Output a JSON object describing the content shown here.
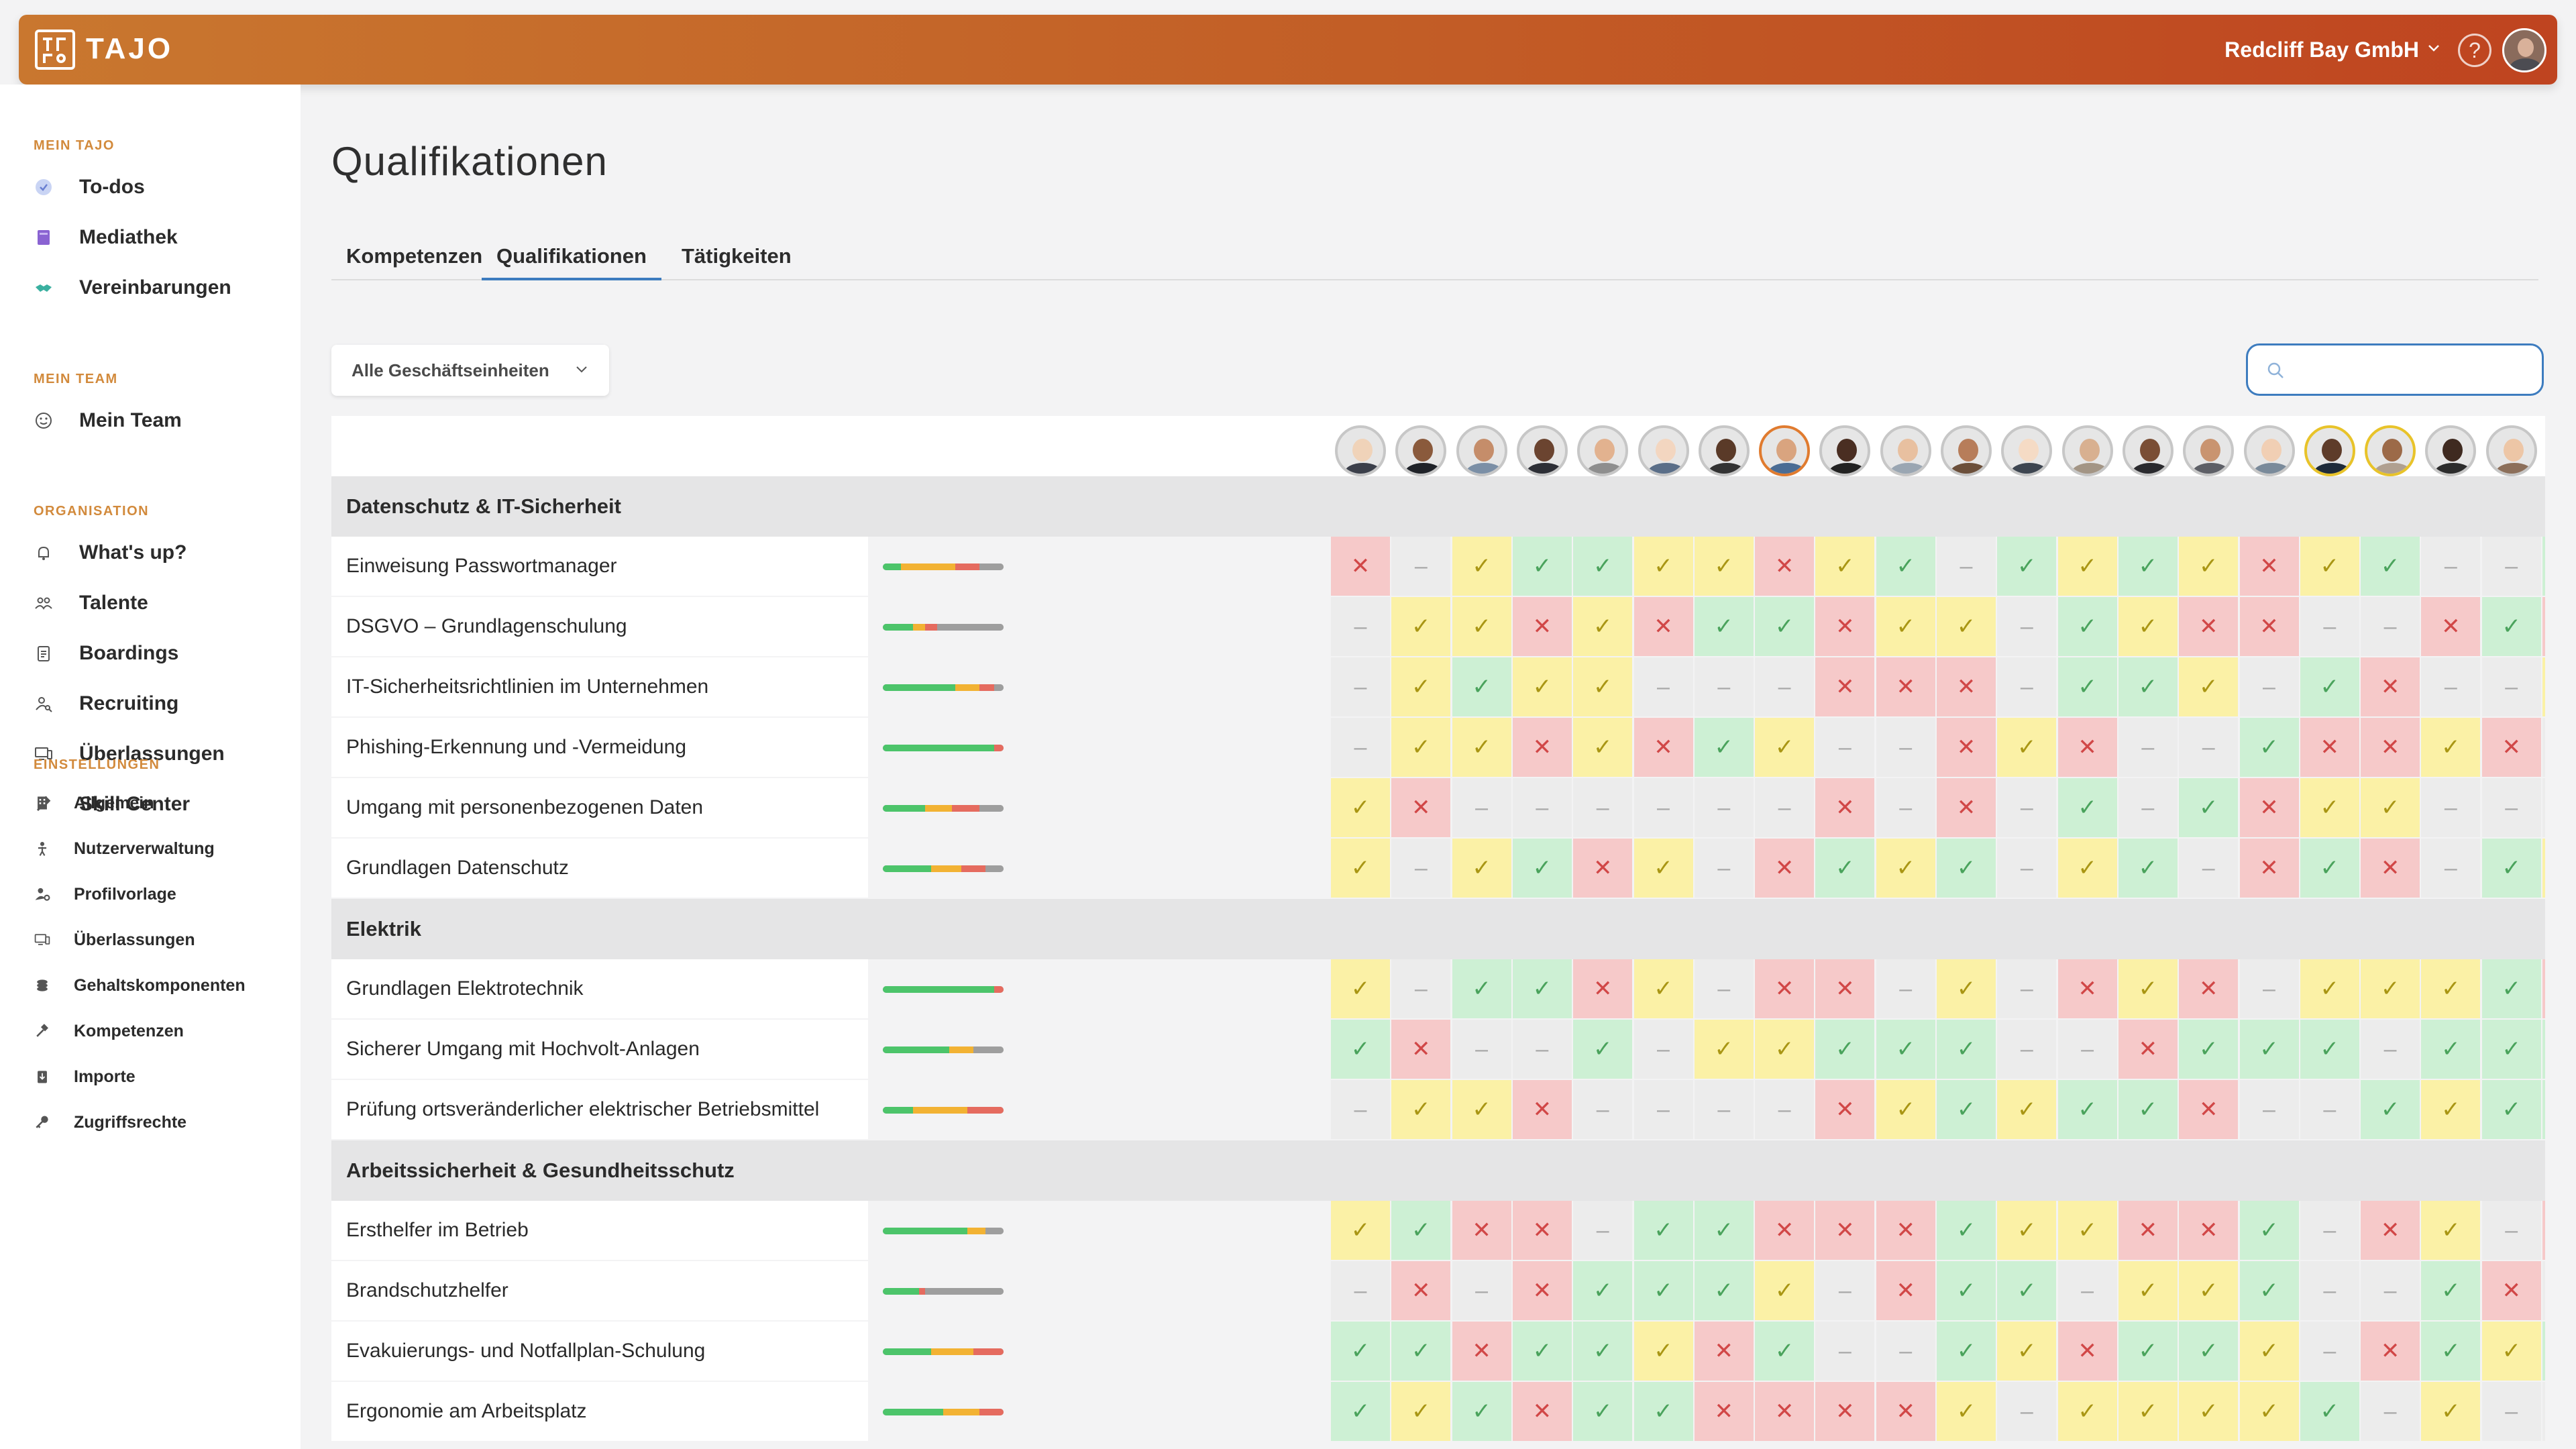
{
  "app": {
    "name": "TAJO",
    "logo_mark": "tajo-logo"
  },
  "header": {
    "company": "Redcliff Bay GmbH",
    "help_symbol": "?"
  },
  "sidebar": {
    "sections": [
      {
        "title": "MEIN TAJO",
        "items": [
          {
            "label": "To-dos",
            "icon": "check-circle-icon"
          },
          {
            "label": "Mediathek",
            "icon": "book-icon"
          },
          {
            "label": "Vereinbarungen",
            "icon": "handshake-icon"
          }
        ]
      },
      {
        "title": "MEIN TEAM",
        "items": [
          {
            "label": "Mein Team",
            "icon": "smiley-icon"
          }
        ]
      },
      {
        "title": "ORGANISATION",
        "items": [
          {
            "label": "What's up?",
            "icon": "bell-icon"
          },
          {
            "label": "Talente",
            "icon": "people-icon"
          },
          {
            "label": "Boardings",
            "icon": "clipboard-icon"
          },
          {
            "label": "Recruiting",
            "icon": "user-search-icon"
          },
          {
            "label": "Überlassungen",
            "icon": "devices-icon"
          },
          {
            "label": "Skill Center",
            "icon": "hammer-icon"
          }
        ]
      },
      {
        "title": "EINSTELLUNGEN",
        "items": [
          {
            "label": "Allgemein",
            "icon": "building-icon"
          },
          {
            "label": "Nutzerverwaltung",
            "icon": "person-icon"
          },
          {
            "label": "Profilvorlage",
            "icon": "user-gear-icon"
          },
          {
            "label": "Überlassungen",
            "icon": "devices-icon"
          },
          {
            "label": "Gehaltskomponenten",
            "icon": "coins-icon"
          },
          {
            "label": "Kompetenzen",
            "icon": "hammer-icon"
          },
          {
            "label": "Importe",
            "icon": "import-icon"
          },
          {
            "label": "Zugriffsrechte",
            "icon": "key-icon"
          }
        ]
      }
    ]
  },
  "page": {
    "title": "Qualifikationen",
    "tabs": [
      {
        "label": "Kompetenzen",
        "active": false
      },
      {
        "label": "Qualifikationen",
        "active": true
      },
      {
        "label": "Tätigkeiten",
        "active": false
      }
    ],
    "filter_label": "Alle Geschäftseinheiten",
    "search_placeholder": ""
  },
  "colors": {
    "accent": "#3d7cbf",
    "check": "#4aa35c",
    "warn": "#a99614",
    "cross": "#d14747",
    "brand_start": "#c9772f",
    "brand_end": "#bf4420"
  },
  "employees": [
    {
      "ring": "#c7c7c7"
    },
    {
      "ring": "#c7c7c7"
    },
    {
      "ring": "#c7c7c7"
    },
    {
      "ring": "#c7c7c7"
    },
    {
      "ring": "#c7c7c7"
    },
    {
      "ring": "#c7c7c7"
    },
    {
      "ring": "#c7c7c7"
    },
    {
      "ring": "#e07b2f"
    },
    {
      "ring": "#c7c7c7"
    },
    {
      "ring": "#c7c7c7"
    },
    {
      "ring": "#c7c7c7"
    },
    {
      "ring": "#c7c7c7"
    },
    {
      "ring": "#c7c7c7"
    },
    {
      "ring": "#c7c7c7"
    },
    {
      "ring": "#c7c7c7"
    },
    {
      "ring": "#c7c7c7"
    },
    {
      "ring": "#e8c32a"
    },
    {
      "ring": "#e8c32a"
    },
    {
      "ring": "#c7c7c7"
    },
    {
      "ring": "#c7c7c7"
    },
    {
      "ring": "#c7c7c7"
    },
    {
      "ring": "#c7c7c7"
    },
    {
      "ring": "#c7c7c7"
    },
    {
      "ring": "#c7c7c7"
    },
    {
      "ring": "#c7c7c7"
    }
  ],
  "groups": [
    {
      "title": "Datenschutz & IT-Sicherheit",
      "rows": [
        {
          "label": "Einweisung Passwortmanager",
          "progress": [
            0.15,
            0.45,
            0.2,
            0.2
          ],
          "cells": "X-WCCWWXWC-CWCWXWC--CCC-W"
        },
        {
          "label": "DSGVO – Grundlagenschulung",
          "progress": [
            0.25,
            0.1,
            0.1,
            0.55
          ],
          "cells": "-WWXWXCCXWW-CWXX--XCX-CXC"
        },
        {
          "label": "IT-Sicherheitsrichtlinien im Unternehmen",
          "progress": [
            0.6,
            0.2,
            0.12,
            0.08
          ],
          "cells": "-WCWW---XXX-CCW-CX--W--W-"
        },
        {
          "label": "Phishing-Erkennung und -Vermeidung",
          "progress": [
            0.92,
            0.0,
            0.08,
            0.0
          ],
          "cells": "-WWXWXCW--XWX--CXXWX--XC-"
        },
        {
          "label": "Umgang mit personenbezogenen Daten",
          "progress": [
            0.35,
            0.22,
            0.23,
            0.2
          ],
          "cells": "WX------X-X-C-CXWW---CXCW"
        },
        {
          "label": "Grundlagen Datenschutz",
          "progress": [
            0.4,
            0.25,
            0.2,
            0.15
          ],
          "cells": "W-WCXW-XCWC-WC-XCX-CWXW--"
        }
      ]
    },
    {
      "title": "Elektrik",
      "rows": [
        {
          "label": "Grundlagen Elektrotechnik",
          "progress": [
            0.92,
            0.0,
            0.08,
            0.0
          ],
          "cells": "W-CCXW-XX-W-XWX-WWWCXWXX-"
        },
        {
          "label": "Sicherer Umgang mit Hochvolt-Anlagen",
          "progress": [
            0.55,
            0.2,
            0.0,
            0.25
          ],
          "cells": "CX--C-WWCCC--XCCC-CCCX-CC"
        },
        {
          "label": "Prüfung ortsveränderlicher elektrischer Betriebsmittel",
          "progress": [
            0.25,
            0.45,
            0.3,
            0.0
          ],
          "cells": "-WWX----XWCWCCX--CWCCCXCX"
        }
      ]
    },
    {
      "title": "Arbeitssicherheit & Gesundheitsschutz",
      "rows": [
        {
          "label": "Ersthelfer im Betrieb",
          "progress": [
            0.7,
            0.15,
            0.0,
            0.15
          ],
          "cells": "WCXX-CCXXXCWWXXC-XW-XXWXW"
        },
        {
          "label": "Brandschutzhelfer",
          "progress": [
            0.3,
            0.0,
            0.05,
            0.65
          ],
          "cells": "-X-XCCCW-XCC-WWC--CX-WWC-"
        },
        {
          "label": "Evakuierungs- und Notfallplan-Schulung",
          "progress": [
            0.4,
            0.35,
            0.25,
            0.0
          ],
          "cells": "CCXCCWXC--CWXCCW-XCWCCW-X"
        },
        {
          "label": "Ergonomie am Arbeitsplatz",
          "progress": [
            0.5,
            0.3,
            0.2,
            0.0
          ],
          "cells": "CWCXCCXXXXW-WWWWC-W---XCW"
        }
      ]
    }
  ]
}
